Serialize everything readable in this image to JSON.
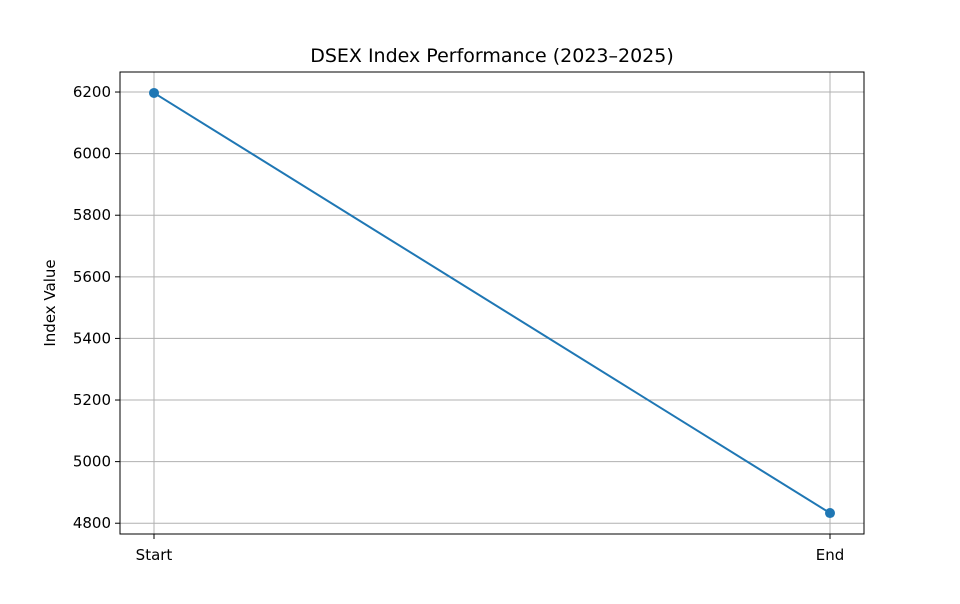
{
  "chart_data": {
    "type": "line",
    "title": "DSEX Index Performance (2023–2025)",
    "xlabel": "",
    "ylabel": "Index Value",
    "categories": [
      "Start",
      "End"
    ],
    "series": [
      {
        "values": [
          6197,
          4833
        ]
      }
    ],
    "ylim": [
      4765,
      6265
    ],
    "yticks": [
      4800,
      5000,
      5200,
      5400,
      5600,
      5800,
      6000,
      6200
    ],
    "grid": true,
    "legend": "none",
    "colors": {
      "line": "#1f77b4",
      "marker": "#1f77b4",
      "grid": "#b0b0b0",
      "axes": "#000000"
    }
  }
}
